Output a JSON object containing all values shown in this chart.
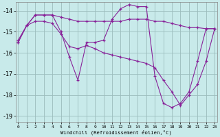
{
  "bg_color": "#c8eaea",
  "grid_color": "#9bbcbc",
  "line_color": "#882299",
  "xlim_min": -0.3,
  "xlim_max": 23.3,
  "ylim_min": -19.3,
  "ylim_max": -13.6,
  "yticks": [
    -19,
    -18,
    -17,
    -16,
    -15,
    -14
  ],
  "xticks": [
    0,
    1,
    2,
    3,
    4,
    5,
    6,
    7,
    8,
    9,
    10,
    11,
    12,
    13,
    14,
    15,
    16,
    17,
    18,
    19,
    20,
    21,
    22,
    23
  ],
  "xlabel": "Windchill (Refroidissement éolien,°C)",
  "line1_x": [
    0,
    1,
    2,
    3,
    4,
    5,
    6,
    7,
    8,
    9,
    10,
    11,
    12,
    13,
    14,
    15,
    16,
    17,
    18,
    19,
    20,
    21,
    22,
    23
  ],
  "line1_y": [
    -15.5,
    -14.7,
    -14.2,
    -14.2,
    -14.2,
    -14.3,
    -14.4,
    -14.5,
    -14.5,
    -14.5,
    -14.5,
    -14.5,
    -14.5,
    -14.4,
    -14.4,
    -14.4,
    -14.5,
    -14.5,
    -14.6,
    -14.7,
    -14.8,
    -14.8,
    -14.85,
    -14.85
  ],
  "line2_x": [
    0,
    1,
    2,
    3,
    4,
    5,
    6,
    7,
    8,
    9,
    10,
    11,
    12,
    13,
    14,
    15,
    16,
    17,
    18,
    19,
    20,
    21,
    22,
    23
  ],
  "line2_y": [
    -15.5,
    -14.7,
    -14.2,
    -14.2,
    -14.2,
    -15.0,
    -16.2,
    -17.3,
    -15.5,
    -15.5,
    -15.4,
    -14.4,
    -13.9,
    -13.7,
    -13.8,
    -13.8,
    -17.1,
    -18.4,
    -18.6,
    -18.4,
    -17.85,
    -16.4,
    -14.85,
    -14.85
  ],
  "line3_x": [
    0,
    1,
    2,
    3,
    4,
    5,
    6,
    7,
    8,
    9,
    10,
    11,
    12,
    13,
    14,
    15,
    16,
    17,
    18,
    19,
    20,
    21,
    22,
    23
  ],
  "line3_y": [
    -15.4,
    -14.7,
    -14.5,
    -14.5,
    -14.6,
    -15.1,
    -15.7,
    -15.8,
    -15.65,
    -15.8,
    -16.0,
    -16.1,
    -16.2,
    -16.3,
    -16.4,
    -16.5,
    -16.7,
    -17.3,
    -17.85,
    -18.5,
    -18.0,
    -17.5,
    -16.4,
    -14.85
  ]
}
